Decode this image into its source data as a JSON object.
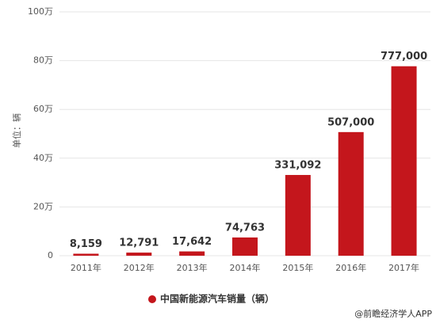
{
  "chart_data": {
    "type": "bar",
    "y_axis_label": "单位：辆",
    "legend_label": "中国新能源汽车销量（辆）",
    "source": "@前瞻经济学人APP",
    "categories": [
      "2011年",
      "2012年",
      "2013年",
      "2014年",
      "2015年",
      "2016年",
      "2017年"
    ],
    "values": [
      8159,
      12791,
      17642,
      74763,
      331092,
      507000,
      777000
    ],
    "value_labels": [
      "8,159",
      "12,791",
      "17,642",
      "74,763",
      "331,092",
      "507,000",
      "777,000"
    ],
    "color": "#c4161c",
    "ylim": [
      0,
      1000000
    ],
    "yticks": [
      0,
      {
        "value": 200000,
        "label": "20万"
      },
      {
        "value": 400000,
        "label": "40万"
      },
      {
        "value": 600000,
        "label": "60万"
      },
      {
        "value": 800000,
        "label": "80万"
      },
      {
        "value": 1000000,
        "label": "100万"
      }
    ],
    "grid": true
  }
}
